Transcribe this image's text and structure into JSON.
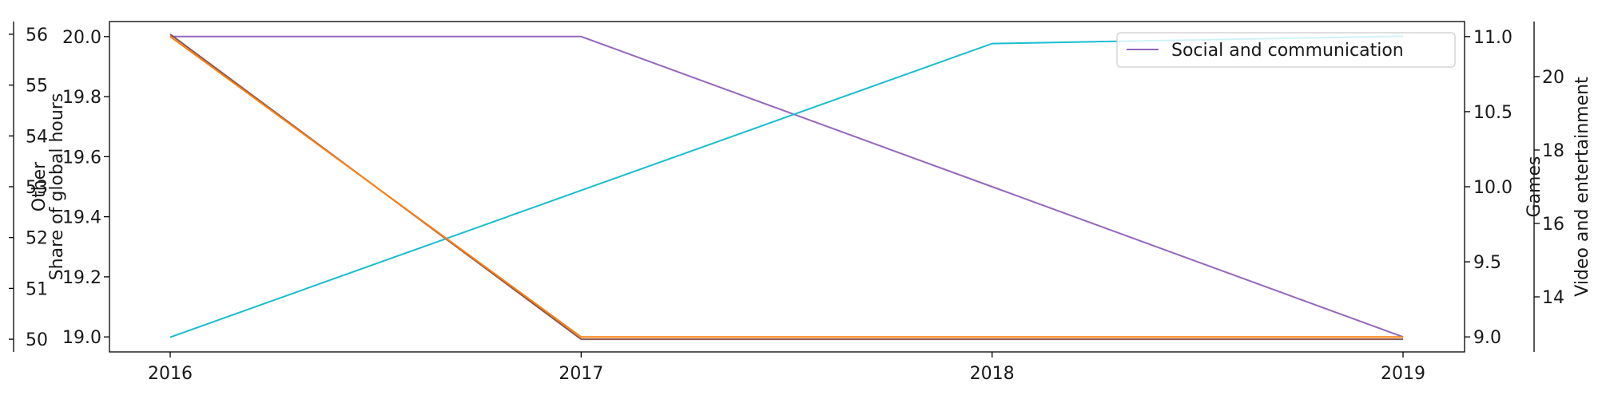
{
  "chart_data": {
    "type": "line",
    "x": [
      "2016",
      "2017",
      "2018",
      "2019"
    ],
    "axes": {
      "share": {
        "label": "Share of global hours",
        "ylim": [
          18.95,
          20.05
        ],
        "ticks": [
          "19.0",
          "19.2",
          "19.4",
          "19.6",
          "19.8",
          "20.0"
        ]
      },
      "other": {
        "label": "Other",
        "ylim": [
          49.75,
          56.25
        ],
        "ticks": [
          "50",
          "51",
          "52",
          "53",
          "54",
          "55",
          "56"
        ]
      },
      "games": {
        "label": "Games",
        "ylim": [
          8.9,
          11.1
        ],
        "ticks": [
          "9.0",
          "9.5",
          "10.0",
          "10.5",
          "11.0"
        ]
      },
      "video": {
        "label": "Video and entertainment",
        "ylim": [
          12.5,
          21.5
        ],
        "ticks": [
          "14",
          "16",
          "18",
          "20"
        ]
      }
    },
    "series": [
      {
        "name": "Social and communication",
        "axis": "games",
        "color": "#9467bd",
        "values": [
          11.0,
          11.0,
          10.0,
          9.0
        ]
      },
      {
        "axis": "video",
        "color": "#17becf",
        "values": [
          12.9,
          16.9,
          20.9,
          21.1
        ]
      },
      {
        "axis": "other",
        "color": "#8c564b",
        "values": [
          56,
          50,
          50,
          50
        ]
      },
      {
        "axis": "share",
        "color": "#ff7f0e",
        "values": [
          20.0,
          19.0,
          19.0,
          19.0
        ]
      }
    ],
    "legend": {
      "position": "top-right",
      "entries": [
        "Social and communication"
      ]
    },
    "grid": false
  }
}
